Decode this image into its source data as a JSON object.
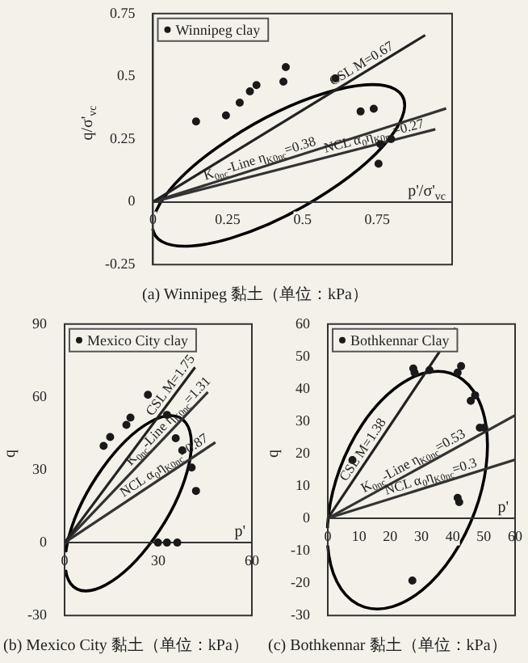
{
  "chart_data": [
    {
      "type": "scatter",
      "ylabel": "q/σ'$_{vc}$",
      "xlabel": "p'/σ'$_{vc}$",
      "xlim": [
        0,
        1
      ],
      "xticks": [
        0,
        0.25,
        0.5,
        0.75
      ],
      "ylim": [
        -0.25,
        0.75
      ],
      "yticks": [
        -0.25,
        0,
        0.25,
        0.5,
        0.75
      ],
      "grid": false,
      "legend": "top left",
      "marker": "circle",
      "line_style": "solid",
      "series": [
        {
          "type": "scatter",
          "name": "Winnipeg clay",
          "color": "#1a1a1a",
          "x": [
            0.144,
            0.244,
            0.29,
            0.324,
            0.346,
            0.436,
            0.444,
            0.61,
            0.694,
            0.738,
            0.754,
            0.76,
            0.796
          ],
          "values": [
            0.32,
            0.344,
            0.395,
            0.44,
            0.465,
            0.479,
            0.537,
            0.492,
            0.36,
            0.371,
            0.152,
            0.23,
            0.25
          ]
        },
        {
          "type": "line",
          "marker": "none",
          "color": "#222222",
          "x": [
            0,
            0.91
          ],
          "values": [
            0,
            0.664
          ]
        },
        {
          "type": "line",
          "marker": "none",
          "color": "#333333",
          "x": [
            0,
            0.98
          ],
          "values": [
            0,
            0.372
          ]
        },
        {
          "type": "line",
          "marker": "none",
          "color": "#333333",
          "x": [
            0,
            0.944
          ],
          "values": [
            0,
            0.289
          ]
        }
      ],
      "annotations": [
        {
          "text": "CSL M=0.67",
          "x": 0.61,
          "y": 0.445
        },
        {
          "text": "K$_{0nc}$-Line η$_{K0nc}$=0.38",
          "x": 0.18,
          "y": 0.068
        },
        {
          "text": "NCL α$_{0}$η$_{K0nc}$=0.27",
          "x": 0.58,
          "y": 0.177
        },
        "(a) Winnipeg 黏土（单位：kPa）"
      ]
    },
    {
      "type": "scatter",
      "ylabel": "q",
      "xlabel": "p'",
      "xlim": [
        0,
        60
      ],
      "xticks": [
        0,
        30,
        60
      ],
      "ylim": [
        -30,
        90
      ],
      "yticks": [
        -30,
        0,
        30,
        60,
        90
      ],
      "grid": false,
      "legend": "top left",
      "marker": "circle",
      "line_style": "solid",
      "series": [
        {
          "type": "scatter",
          "name": "Mexico City clay",
          "color": "#1a1a1a",
          "x": [
            12.5,
            14.6,
            19.8,
            21.1,
            26.7,
            32.8,
            35.6,
            37.7,
            40.7,
            42.1,
            29.9,
            32.8,
            36.1
          ],
          "values": [
            39.8,
            43.5,
            48.5,
            51.5,
            60.9,
            52.6,
            43,
            38,
            30.9,
            21.3,
            0,
            0,
            0
          ]
        },
        {
          "type": "line",
          "marker": "none",
          "color": "#222222",
          "x": [
            0,
            41.8
          ],
          "values": [
            0,
            72.2
          ]
        },
        {
          "type": "line",
          "marker": "none",
          "color": "#333333",
          "x": [
            0,
            45.9
          ],
          "values": [
            0,
            62
          ]
        },
        {
          "type": "line",
          "marker": "none",
          "color": "#333333",
          "x": [
            0,
            48.3
          ],
          "values": [
            0,
            41.3
          ]
        }
      ],
      "annotations": [
        {
          "text": "CSL M=1.75",
          "x": 29.3,
          "y": 50.7
        },
        {
          "text": "K$_{0nc}$-Line η$_{K0nc}$=1.31",
          "x": 22.3,
          "y": 30.1
        },
        {
          "text": "NCL α$_{0}$η$_{K0nc}$=0.87",
          "x": 19.8,
          "y": 17
        },
        "(b) Mexico City 黏土（单位：kPa）"
      ]
    },
    {
      "type": "scatter",
      "ylabel": "q",
      "xlabel": "p'",
      "xlim": [
        0,
        60
      ],
      "xticks": [
        0,
        10,
        20,
        30,
        40,
        50,
        60
      ],
      "ylim": [
        -30,
        60
      ],
      "yticks": [
        -30,
        -20,
        -10,
        0,
        10,
        20,
        30,
        40,
        50,
        60
      ],
      "grid": false,
      "legend": "top left",
      "marker": "circle",
      "line_style": "solid",
      "series": [
        {
          "type": "scatter",
          "name": "Bothkennar Clay",
          "color": "#1a1a1a",
          "x": [
            7.9,
            27.4,
            27.8,
            32.6,
            41.6,
            42.7,
            45.8,
            47.2,
            48.7,
            50.1,
            41.6,
            42.1,
            27.1
          ],
          "values": [
            18,
            46.3,
            45,
            45.8,
            45,
            47,
            36.3,
            38,
            28,
            28,
            6.3,
            5,
            -19.2
          ]
        },
        {
          "type": "line",
          "marker": "none",
          "color": "#222222",
          "x": [
            0,
            40.9
          ],
          "values": [
            0,
            58.8
          ]
        },
        {
          "type": "line",
          "marker": "none",
          "color": "#333333",
          "x": [
            0,
            60
          ],
          "values": [
            0,
            31.8
          ]
        },
        {
          "type": "line",
          "marker": "none",
          "color": "#333333",
          "x": [
            0,
            60
          ],
          "values": [
            0,
            18.1
          ]
        }
      ],
      "annotations": [
        {
          "text": "CSL M=1.38",
          "x": 7.2,
          "y": 10.4
        },
        {
          "text": "K$_{0nc}$-Line η$_{K0nc}$=0.53",
          "x": 12.4,
          "y": 6.6
        },
        {
          "text": "NCL α$_{0}$η$_{K0nc}$=0.3",
          "x": 19.2,
          "y": 5.8
        },
        "(c) Bothkennar 黏土（单位：kPa）"
      ]
    }
  ]
}
